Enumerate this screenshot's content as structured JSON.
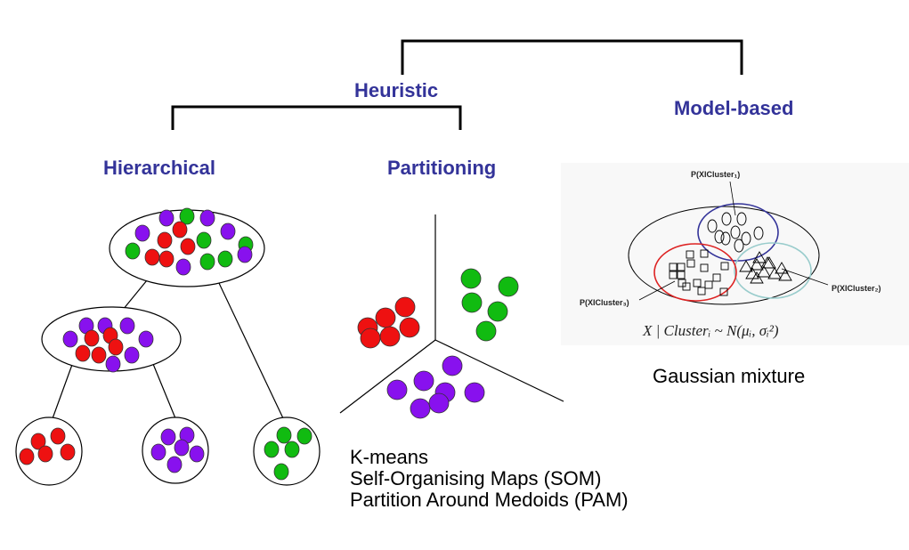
{
  "colors": {
    "label": "#333399",
    "red": "#ee1111",
    "purple": "#8811ee",
    "green": "#11bb11",
    "cluster1": "#333399",
    "cluster2": "#99cccc",
    "cluster3": "#dd2222"
  },
  "labels": {
    "heuristic": "Heuristic",
    "model_based": "Model-based",
    "hierarchical": "Hierarchical",
    "partitioning": "Partitioning"
  },
  "gaussian": {
    "caption": "Gaussian mixture",
    "cluster1_label": "P(XICluster₁)",
    "cluster2_label": "P(XICluster₂)",
    "cluster3_label": "P(XICluster₃)",
    "equation": "X | Clusterᵢ ~ N(μᵢ, σᵢ²)"
  },
  "partition_methods": [
    "K-means",
    "Self-Organising Maps (SOM)",
    "Partition Around Medoids (PAM)"
  ]
}
